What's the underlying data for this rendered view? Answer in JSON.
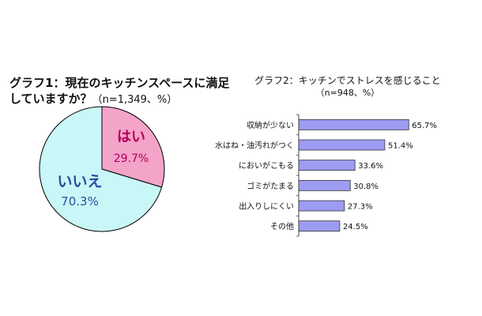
{
  "chart_data": [
    {
      "type": "pie",
      "title": "グラフ1：現在のキッチンスペースに満足していますか？",
      "subtitle": "（n=1,349、%）",
      "categories": [
        "はい",
        "いいえ"
      ],
      "values": [
        29.7,
        70.3
      ],
      "value_labels": [
        "29.7%",
        "70.3%"
      ],
      "colors": [
        "#f4a3c9",
        "#c9f6f6"
      ]
    },
    {
      "type": "bar",
      "orientation": "horizontal",
      "title": "グラフ2：キッチンでストレスを感じること",
      "subtitle": "（n=948、%）",
      "categories": [
        "収納が少ない",
        "水はね・油汚れがつく",
        "においがこもる",
        "ゴミがたまる",
        "出入りしにくい",
        "その他"
      ],
      "values": [
        65.7,
        51.4,
        33.6,
        30.8,
        27.3,
        24.5
      ],
      "value_labels": [
        "65.7%",
        "51.4%",
        "33.6%",
        "30.8%",
        "27.3%",
        "24.5%"
      ],
      "bar_color": "#9c9cf2",
      "xlim": [
        0,
        100
      ]
    }
  ]
}
